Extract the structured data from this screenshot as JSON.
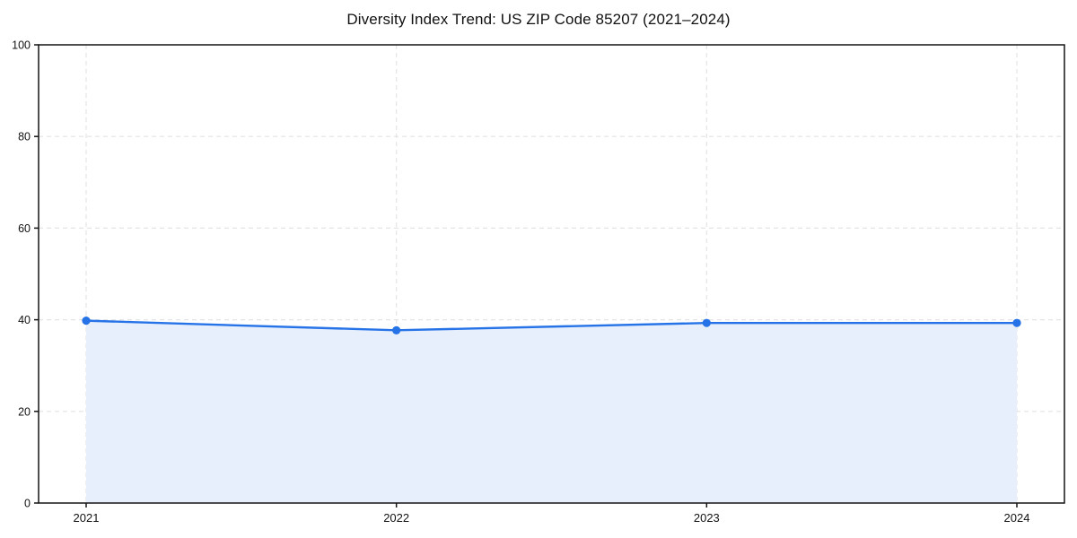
{
  "page": {
    "background_color": "#ffffff"
  },
  "chart_data": {
    "type": "area",
    "title": "Diversity Index Trend: US ZIP Code 85207 (2021–2024)",
    "categories": [
      "2021",
      "2022",
      "2023",
      "2024"
    ],
    "series": [
      {
        "name": "Diversity Index",
        "values": [
          39.8,
          37.7,
          39.3,
          39.3
        ]
      }
    ],
    "xlabel": "",
    "ylabel": "",
    "ylim": [
      0,
      100
    ],
    "yticks": [
      0,
      20,
      40,
      60,
      80,
      100
    ],
    "grid": true,
    "grid_style": "dashed",
    "legend_position": "none",
    "marker": "circle",
    "colors": {
      "line": "#2673e8",
      "marker": "#2673e8",
      "area_fill": "#e7effc",
      "gridline": "#e4e4e4",
      "spine": "#141414",
      "tick_label": "#111111"
    }
  }
}
